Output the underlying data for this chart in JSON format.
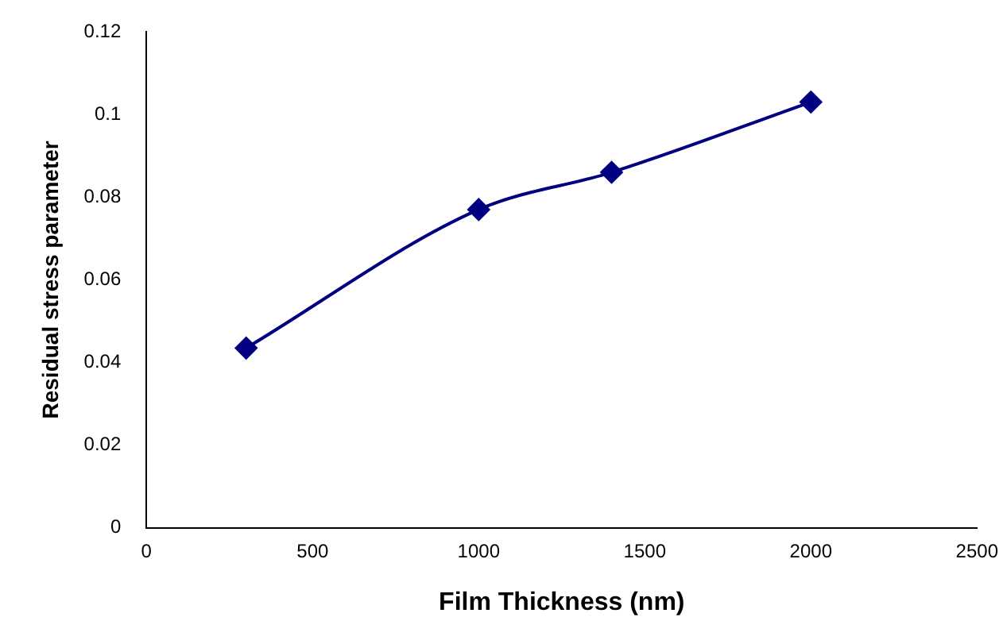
{
  "chart_data": {
    "type": "line",
    "xlabel": "Film Thickness (nm)",
    "ylabel": "Residual stress parameter",
    "x": [
      300,
      1000,
      1400,
      2000
    ],
    "series": [
      {
        "color": "#000080",
        "values": [
          0.0435,
          0.077,
          0.086,
          0.103
        ]
      }
    ],
    "xlim": [
      0,
      2500
    ],
    "xticks": [
      0,
      500,
      1000,
      1500,
      2000,
      2500
    ],
    "ylim": [
      0,
      0.12
    ],
    "yticks": [
      0,
      0.02,
      0.04,
      0.06,
      0.08,
      0.1,
      0.12
    ],
    "grid": false,
    "legend": false,
    "marker": "diamond",
    "line_style": "solid"
  }
}
